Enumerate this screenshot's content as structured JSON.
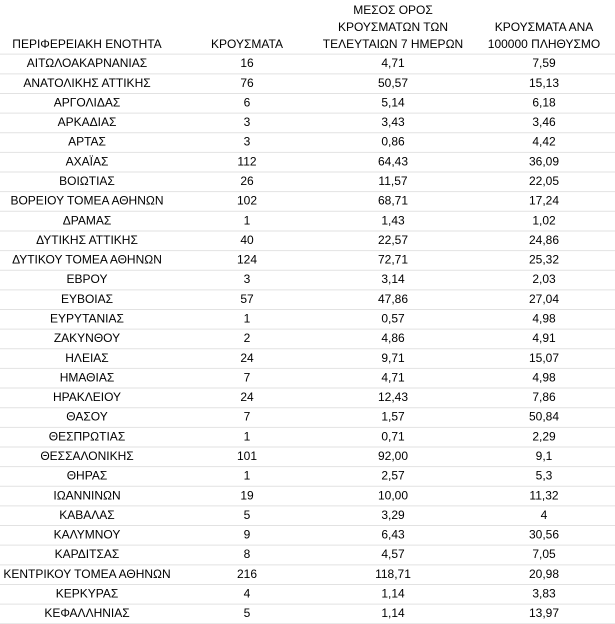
{
  "table": {
    "header": [
      [
        "ΠΕΡΙΦΕΡΕΙΑΚΗ ΕΝΟΤΗΤΑ"
      ],
      [
        "ΚΡΟΥΣΜΑΤΑ"
      ],
      [
        "ΜΕΣΟΣ ΟΡΟΣ",
        "ΚΡΟΥΣΜΑΤΩΝ ΤΩΝ",
        "ΤΕΛΕΥΤΑΙΩΝ 7 ΗΜΕΡΩΝ"
      ],
      [
        "ΚΡΟΥΣΜΑΤΑ ΑΝΑ",
        "100000 ΠΛΗΘΥΣΜΟ"
      ]
    ],
    "rows": [
      [
        "ΑΙΤΩΛΟΑΚΑΡΝΑΝΙΑΣ",
        "16",
        "4,71",
        "7,59"
      ],
      [
        "ΑΝΑΤΟΛΙΚΗΣ ΑΤΤΙΚΗΣ",
        "76",
        "50,57",
        "15,13"
      ],
      [
        "ΑΡΓΟΛΙΔΑΣ",
        "6",
        "5,14",
        "6,18"
      ],
      [
        "ΑΡΚΑΔΙΑΣ",
        "3",
        "3,43",
        "3,46"
      ],
      [
        "ΑΡΤΑΣ",
        "3",
        "0,86",
        "4,42"
      ],
      [
        "ΑΧΑΪΑΣ",
        "112",
        "64,43",
        "36,09"
      ],
      [
        "ΒΟΙΩΤΙΑΣ",
        "26",
        "11,57",
        "22,05"
      ],
      [
        "ΒΟΡΕΙΟΥ ΤΟΜΕΑ ΑΘΗΝΩΝ",
        "102",
        "68,71",
        "17,24"
      ],
      [
        "ΔΡΑΜΑΣ",
        "1",
        "1,43",
        "1,02"
      ],
      [
        "ΔΥΤΙΚΗΣ ΑΤΤΙΚΗΣ",
        "40",
        "22,57",
        "24,86"
      ],
      [
        "ΔΥΤΙΚΟΥ ΤΟΜΕΑ ΑΘΗΝΩΝ",
        "124",
        "72,71",
        "25,32"
      ],
      [
        "ΕΒΡΟΥ",
        "3",
        "3,14",
        "2,03"
      ],
      [
        "ΕΥΒΟΙΑΣ",
        "57",
        "47,86",
        "27,04"
      ],
      [
        "ΕΥΡΥΤΑΝΙΑΣ",
        "1",
        "0,57",
        "4,98"
      ],
      [
        "ΖΑΚΥΝΘΟΥ",
        "2",
        "4,86",
        "4,91"
      ],
      [
        "ΗΛΕΙΑΣ",
        "24",
        "9,71",
        "15,07"
      ],
      [
        "ΗΜΑΘΙΑΣ",
        "7",
        "4,71",
        "4,98"
      ],
      [
        "ΗΡΑΚΛΕΙΟΥ",
        "24",
        "12,43",
        "7,86"
      ],
      [
        "ΘΑΣΟΥ",
        "7",
        "1,57",
        "50,84"
      ],
      [
        "ΘΕΣΠΡΩΤΙΑΣ",
        "1",
        "0,71",
        "2,29"
      ],
      [
        "ΘΕΣΣΑΛΟΝΙΚΗΣ",
        "101",
        "92,00",
        "9,1"
      ],
      [
        "ΘΗΡΑΣ",
        "1",
        "2,57",
        "5,3"
      ],
      [
        "ΙΩΑΝΝΙΝΩΝ",
        "19",
        "10,00",
        "11,32"
      ],
      [
        "ΚΑΒΑΛΑΣ",
        "5",
        "3,29",
        "4"
      ],
      [
        "ΚΑΛΥΜΝΟΥ",
        "9",
        "6,43",
        "30,56"
      ],
      [
        "ΚΑΡΔΙΤΣΑΣ",
        "8",
        "4,57",
        "7,05"
      ],
      [
        "ΚΕΝΤΡΙΚΟΥ ΤΟΜΕΑ ΑΘΗΝΩΝ",
        "216",
        "118,71",
        "20,98"
      ],
      [
        "ΚΕΡΚΥΡΑΣ",
        "4",
        "1,14",
        "3,83"
      ],
      [
        "ΚΕΦΑΛΛΗΝΙΑΣ",
        "5",
        "1,14",
        "13,97"
      ]
    ]
  }
}
